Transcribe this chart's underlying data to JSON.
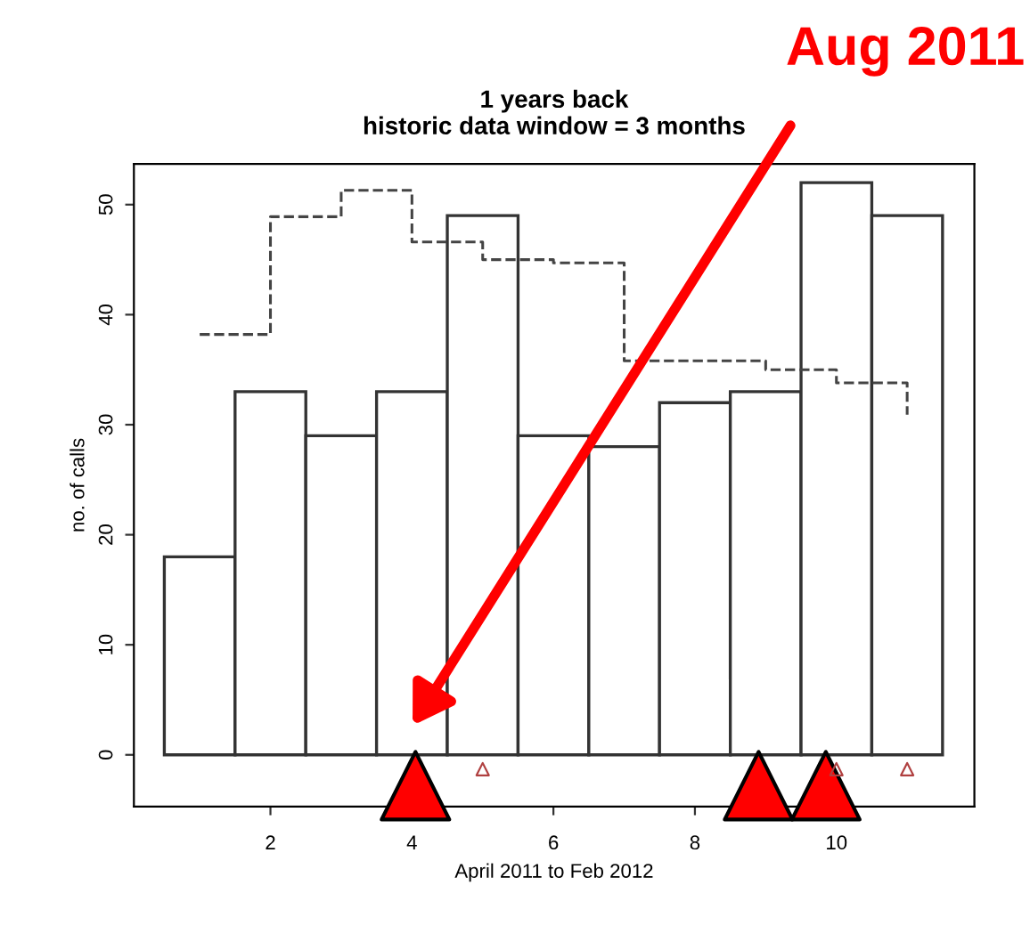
{
  "chart_data": {
    "type": "bar",
    "title": "1 years back\nhistoric data window = 3 months",
    "xlabel": "April 2011 to Feb 2012",
    "ylabel": "no. of calls",
    "x": [
      1,
      2,
      3,
      4,
      5,
      6,
      7,
      8,
      9,
      10,
      11
    ],
    "series": [
      {
        "color": "#ffffff",
        "values": [
          18,
          33,
          29,
          33,
          49,
          29,
          28,
          32,
          33,
          52,
          49
        ]
      },
      {
        "type": "step",
        "color": "#444444",
        "line_style": "dashed",
        "values": [
          38.2,
          48.9,
          51.3,
          46.6,
          45.0,
          44.7,
          35.8,
          35.8,
          35.0,
          33.8,
          30.9
        ]
      },
      {
        "type": "scatter",
        "color": "#b04040",
        "marker": "triangle",
        "x": [
          5,
          10,
          11
        ],
        "values": [
          -1.3,
          -1.3,
          -1.3
        ]
      },
      {
        "type": "scatter",
        "color": "#ff0000",
        "marker": "triangle",
        "x": [
          4.05,
          8.9,
          9.85
        ],
        "values": [
          -2.8,
          -2.8,
          -2.8
        ]
      }
    ],
    "annotations": [
      "Aug 2011"
    ],
    "xlim": [
      0.07,
      11.95
    ],
    "ylim": [
      -4.7,
      53.7
    ],
    "xticks": [
      2,
      4,
      6,
      8,
      10
    ],
    "yticks": [
      0,
      10,
      20,
      30,
      40,
      50
    ],
    "grid": false,
    "legend": false
  }
}
